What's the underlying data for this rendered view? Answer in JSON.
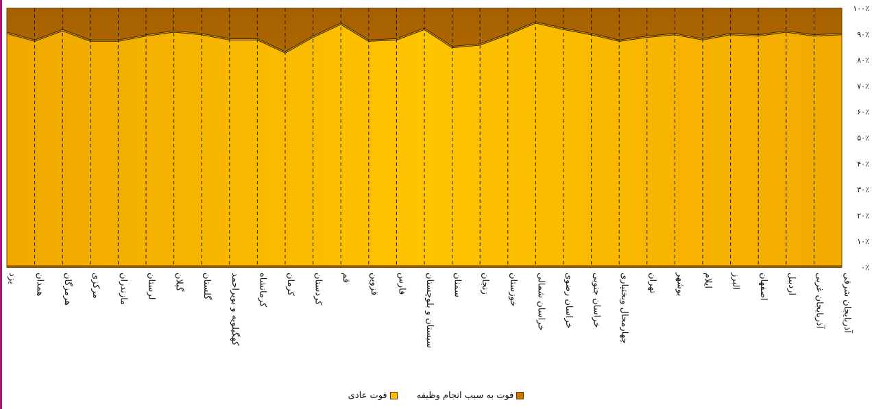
{
  "chart_data": {
    "type": "area",
    "stacked": "percent",
    "categories": [
      "یزد",
      "همدان",
      "هرمزگان",
      "مرکزی",
      "مازندران",
      "لرستان",
      "گیلان",
      "گلستان",
      "کهگیلویه و بویراحمد",
      "کرمانشاه",
      "کرمان",
      "کردستان",
      "قم",
      "قزوین",
      "فارس",
      "سیستان و بلوچستان",
      "سمنان",
      "زنجان",
      "خوزستان",
      "خراسان شمالی",
      "خراسان رضوی",
      "خراسان جنوبی",
      "چهارمحال وبختیاری",
      "تهران",
      "بوشهر",
      "ایلام",
      "البرز",
      "اصفهان",
      "اردبیل",
      "آذربایجان غربی",
      "آذربایجان شرقی"
    ],
    "series": [
      {
        "name": "فوت عادی",
        "color": "#ffc000",
        "values": [
          90.5,
          87.5,
          91.5,
          87.5,
          87.5,
          89.5,
          91,
          90,
          88,
          88,
          83,
          89,
          94,
          87.5,
          88,
          92,
          85,
          86,
          90,
          94.5,
          92,
          90,
          87.5,
          89,
          90,
          88,
          90,
          89.5,
          91,
          89.5,
          90
        ]
      },
      {
        "name": "فوت به سبب انجام وظیفه",
        "color": "#c87800",
        "values": [
          9.5,
          12.5,
          8.5,
          12.5,
          12.5,
          10.5,
          9,
          10,
          12,
          12,
          17,
          11,
          6,
          12.5,
          12,
          8,
          15,
          14,
          10,
          5.5,
          8,
          10,
          12.5,
          11,
          10,
          12,
          10,
          10.5,
          9,
          10.5,
          10
        ]
      }
    ],
    "y_ticks": [
      "۰٪",
      "۱۰٪",
      "۲۰٪",
      "۳۰٪",
      "۴۰٪",
      "۵۰٪",
      "۶۰٪",
      "۷۰٪",
      "۸۰٪",
      "۹۰٪",
      "۱۰۰٪"
    ],
    "ylim": [
      0,
      100
    ],
    "grid": "vertical dashed",
    "legend_position": "bottom"
  },
  "legend": {
    "items": [
      {
        "label": "فوت به سبب انجام وظیفه",
        "color": "#c87800"
      },
      {
        "label": "فوت عادی",
        "color": "#ffc000"
      }
    ]
  }
}
